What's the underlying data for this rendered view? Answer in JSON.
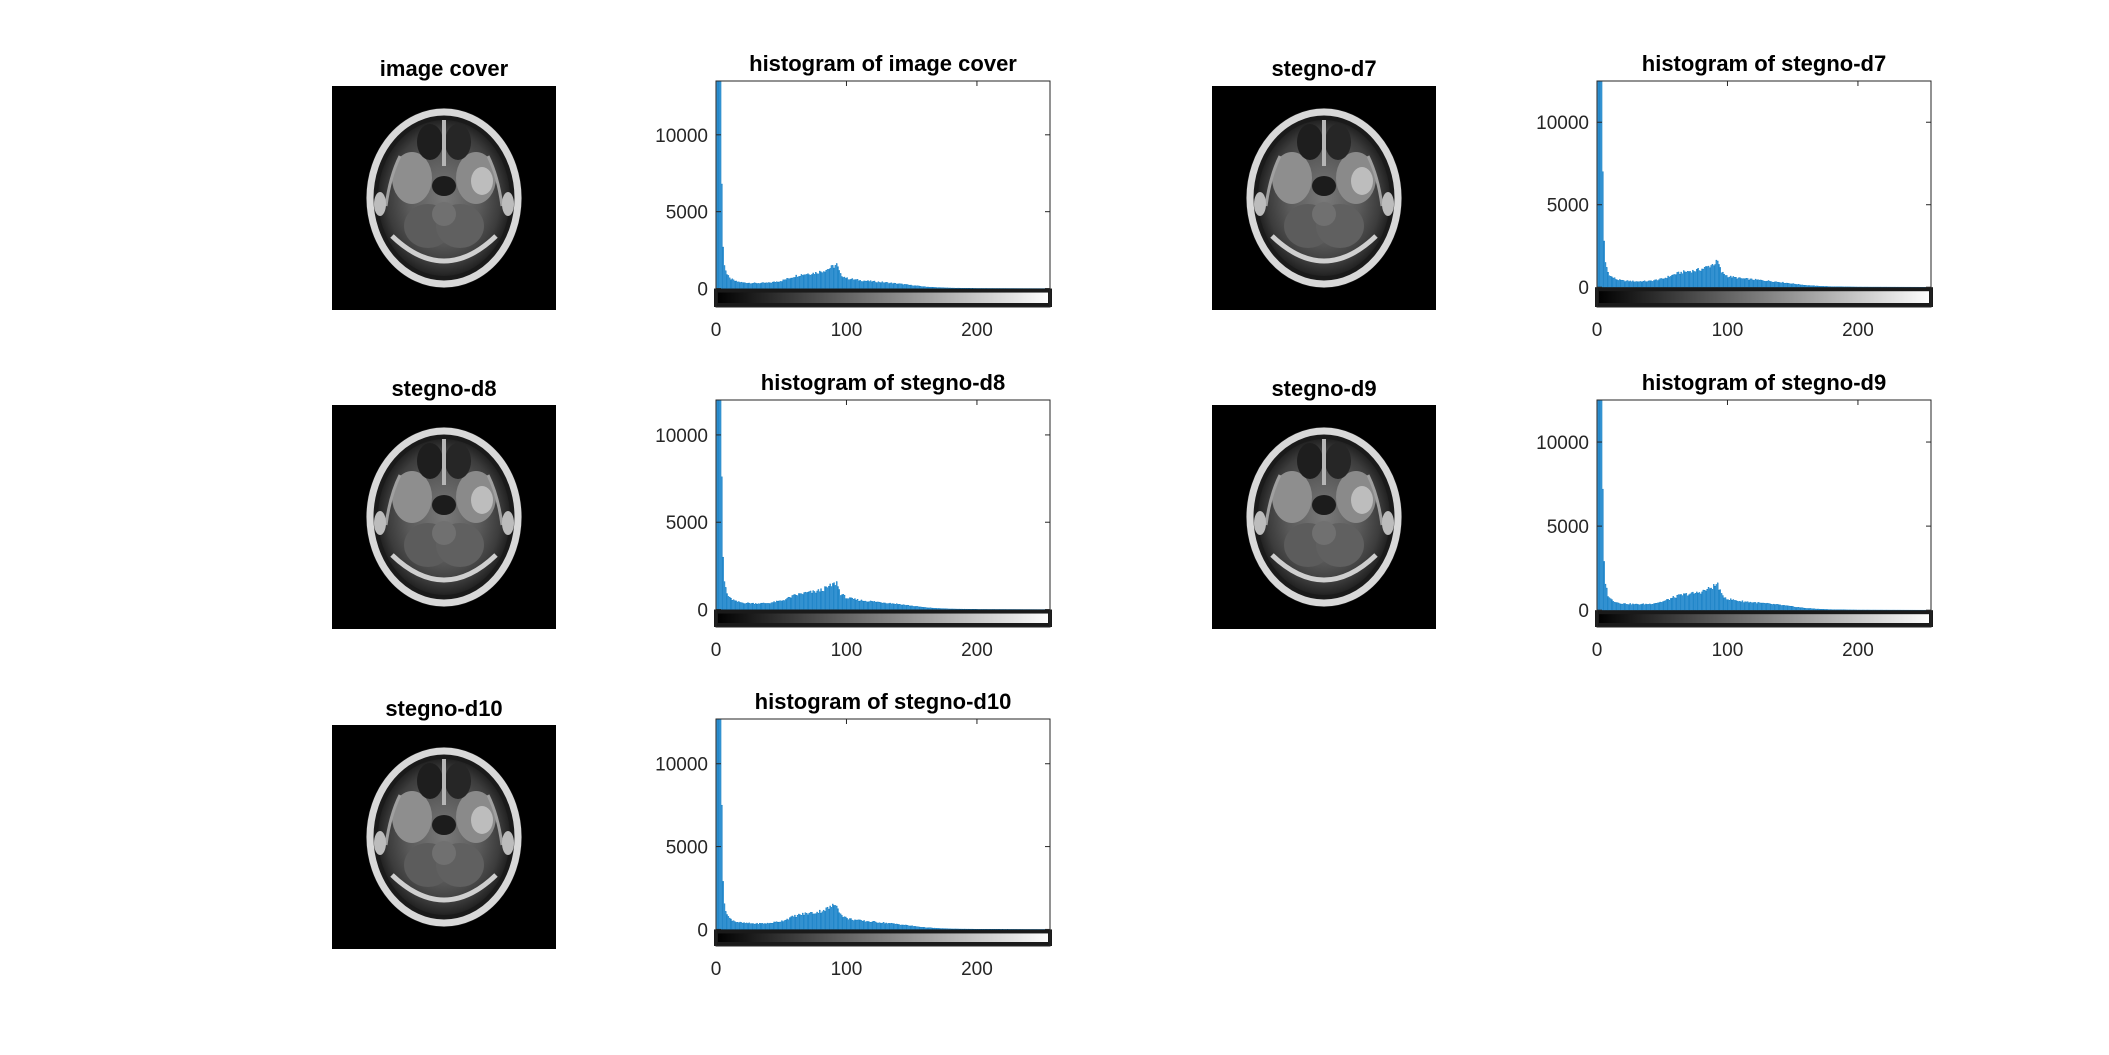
{
  "figure": {
    "image_panels": [
      {
        "title": "image cover"
      },
      {
        "title": "stegno-d7"
      },
      {
        "title": "stegno-d8"
      },
      {
        "title": "stegno-d9"
      },
      {
        "title": "stegno-d10"
      }
    ]
  },
  "colors": {
    "bar": "#0072BD",
    "bar_fill": "#4DA3DD",
    "axis": "#262626",
    "title": "#000000"
  },
  "chart_data": [
    {
      "type": "bar",
      "title": "histogram of image cover",
      "xlabel": "",
      "ylabel": "",
      "xlim": [
        0,
        256
      ],
      "ylim": [
        -1200,
        13500
      ],
      "xticks": [
        0,
        100,
        200
      ],
      "yticks": [
        0,
        5000,
        10000
      ],
      "grid": false,
      "colorbar": "grayscale 0-255 below x axis",
      "bins_note": "256 intensity bins; values estimated",
      "peaks": [
        [
          0,
          13500
        ],
        [
          1,
          13500
        ],
        [
          2,
          13500
        ],
        [
          3,
          13500
        ],
        [
          4,
          6800
        ],
        [
          5,
          2700
        ],
        [
          6,
          1500
        ],
        [
          8,
          900
        ],
        [
          10,
          650
        ],
        [
          15,
          450
        ],
        [
          20,
          380
        ],
        [
          30,
          340
        ],
        [
          40,
          360
        ],
        [
          50,
          500
        ],
        [
          55,
          650
        ],
        [
          60,
          800
        ],
        [
          65,
          900
        ],
        [
          70,
          960
        ],
        [
          75,
          1000
        ],
        [
          80,
          1100
        ],
        [
          85,
          1250
        ],
        [
          90,
          1450
        ],
        [
          92,
          1550
        ],
        [
          95,
          900
        ],
        [
          100,
          650
        ],
        [
          110,
          520
        ],
        [
          120,
          450
        ],
        [
          130,
          380
        ],
        [
          140,
          300
        ],
        [
          150,
          200
        ],
        [
          160,
          110
        ],
        [
          170,
          60
        ],
        [
          180,
          30
        ],
        [
          200,
          12
        ],
        [
          255,
          0
        ]
      ]
    },
    {
      "type": "bar",
      "title": "histogram of stegno-d7",
      "xlabel": "",
      "ylabel": "",
      "xlim": [
        0,
        256
      ],
      "ylim": [
        -1200,
        12500
      ],
      "xticks": [
        0,
        100,
        200
      ],
      "yticks": [
        0,
        5000,
        10000
      ],
      "grid": false,
      "colorbar": "grayscale 0-255 below x axis",
      "bins_note": "256 intensity bins; values estimated",
      "peaks": [
        [
          0,
          12500
        ],
        [
          1,
          12500
        ],
        [
          2,
          12500
        ],
        [
          3,
          12500
        ],
        [
          4,
          7000
        ],
        [
          5,
          2800
        ],
        [
          6,
          1500
        ],
        [
          8,
          900
        ],
        [
          10,
          650
        ],
        [
          15,
          450
        ],
        [
          20,
          380
        ],
        [
          30,
          340
        ],
        [
          40,
          360
        ],
        [
          50,
          500
        ],
        [
          55,
          650
        ],
        [
          60,
          800
        ],
        [
          65,
          900
        ],
        [
          70,
          960
        ],
        [
          75,
          1000
        ],
        [
          80,
          1100
        ],
        [
          85,
          1250
        ],
        [
          90,
          1450
        ],
        [
          92,
          1550
        ],
        [
          95,
          900
        ],
        [
          100,
          650
        ],
        [
          110,
          520
        ],
        [
          120,
          450
        ],
        [
          130,
          380
        ],
        [
          140,
          300
        ],
        [
          150,
          200
        ],
        [
          160,
          110
        ],
        [
          170,
          60
        ],
        [
          180,
          30
        ],
        [
          200,
          12
        ],
        [
          255,
          0
        ]
      ]
    },
    {
      "type": "bar",
      "title": "histogram of stegno-d8",
      "xlabel": "",
      "ylabel": "",
      "xlim": [
        0,
        256
      ],
      "ylim": [
        -1000,
        12000
      ],
      "xticks": [
        0,
        100,
        200
      ],
      "yticks": [
        0,
        5000,
        10000
      ],
      "grid": false,
      "colorbar": "grayscale 0-255 below x axis",
      "bins_note": "256 intensity bins; values estimated",
      "peaks": [
        [
          0,
          12000
        ],
        [
          1,
          12000
        ],
        [
          2,
          12000
        ],
        [
          3,
          12000
        ],
        [
          4,
          7600
        ],
        [
          5,
          3000
        ],
        [
          6,
          1600
        ],
        [
          8,
          900
        ],
        [
          10,
          650
        ],
        [
          15,
          450
        ],
        [
          20,
          380
        ],
        [
          30,
          340
        ],
        [
          40,
          360
        ],
        [
          50,
          500
        ],
        [
          55,
          650
        ],
        [
          60,
          800
        ],
        [
          65,
          900
        ],
        [
          70,
          960
        ],
        [
          75,
          1000
        ],
        [
          80,
          1100
        ],
        [
          85,
          1250
        ],
        [
          90,
          1450
        ],
        [
          92,
          1550
        ],
        [
          95,
          900
        ],
        [
          100,
          650
        ],
        [
          110,
          520
        ],
        [
          120,
          450
        ],
        [
          130,
          380
        ],
        [
          140,
          300
        ],
        [
          150,
          200
        ],
        [
          160,
          110
        ],
        [
          170,
          60
        ],
        [
          180,
          30
        ],
        [
          200,
          12
        ],
        [
          255,
          0
        ]
      ]
    },
    {
      "type": "bar",
      "title": "histogram of stegno-d9",
      "xlabel": "",
      "ylabel": "",
      "xlim": [
        0,
        256
      ],
      "ylim": [
        -1000,
        12500
      ],
      "xticks": [
        0,
        100,
        200
      ],
      "yticks": [
        0,
        5000,
        10000
      ],
      "grid": false,
      "colorbar": "grayscale 0-255 below x axis",
      "bins_note": "256 intensity bins; values estimated",
      "peaks": [
        [
          0,
          12500
        ],
        [
          1,
          12500
        ],
        [
          2,
          12500
        ],
        [
          3,
          12500
        ],
        [
          4,
          7200
        ],
        [
          5,
          2900
        ],
        [
          6,
          1550
        ],
        [
          8,
          900
        ],
        [
          10,
          650
        ],
        [
          15,
          450
        ],
        [
          20,
          380
        ],
        [
          30,
          340
        ],
        [
          40,
          360
        ],
        [
          50,
          500
        ],
        [
          55,
          650
        ],
        [
          60,
          800
        ],
        [
          65,
          900
        ],
        [
          70,
          960
        ],
        [
          75,
          1000
        ],
        [
          80,
          1100
        ],
        [
          85,
          1250
        ],
        [
          90,
          1450
        ],
        [
          92,
          1550
        ],
        [
          95,
          900
        ],
        [
          100,
          650
        ],
        [
          110,
          520
        ],
        [
          120,
          450
        ],
        [
          130,
          380
        ],
        [
          140,
          300
        ],
        [
          150,
          200
        ],
        [
          160,
          110
        ],
        [
          170,
          60
        ],
        [
          180,
          30
        ],
        [
          200,
          12
        ],
        [
          255,
          0
        ]
      ]
    },
    {
      "type": "bar",
      "title": "histogram of stegno-d10",
      "xlabel": "",
      "ylabel": "",
      "xlim": [
        0,
        256
      ],
      "ylim": [
        -1000,
        12700
      ],
      "xticks": [
        0,
        100,
        200
      ],
      "yticks": [
        0,
        5000,
        10000
      ],
      "grid": false,
      "colorbar": "grayscale 0-255 below x axis",
      "bins_note": "256 intensity bins; values estimated",
      "peaks": [
        [
          0,
          12700
        ],
        [
          1,
          12700
        ],
        [
          2,
          12700
        ],
        [
          3,
          12700
        ],
        [
          4,
          7500
        ],
        [
          5,
          2900
        ],
        [
          6,
          1550
        ],
        [
          8,
          900
        ],
        [
          10,
          650
        ],
        [
          15,
          450
        ],
        [
          20,
          380
        ],
        [
          30,
          340
        ],
        [
          40,
          360
        ],
        [
          50,
          500
        ],
        [
          55,
          650
        ],
        [
          60,
          800
        ],
        [
          65,
          900
        ],
        [
          70,
          960
        ],
        [
          75,
          1000
        ],
        [
          80,
          1100
        ],
        [
          85,
          1250
        ],
        [
          90,
          1450
        ],
        [
          92,
          1550
        ],
        [
          95,
          900
        ],
        [
          100,
          650
        ],
        [
          110,
          520
        ],
        [
          120,
          450
        ],
        [
          130,
          380
        ],
        [
          140,
          300
        ],
        [
          150,
          200
        ],
        [
          160,
          110
        ],
        [
          170,
          60
        ],
        [
          180,
          30
        ],
        [
          200,
          12
        ],
        [
          255,
          0
        ]
      ]
    }
  ]
}
